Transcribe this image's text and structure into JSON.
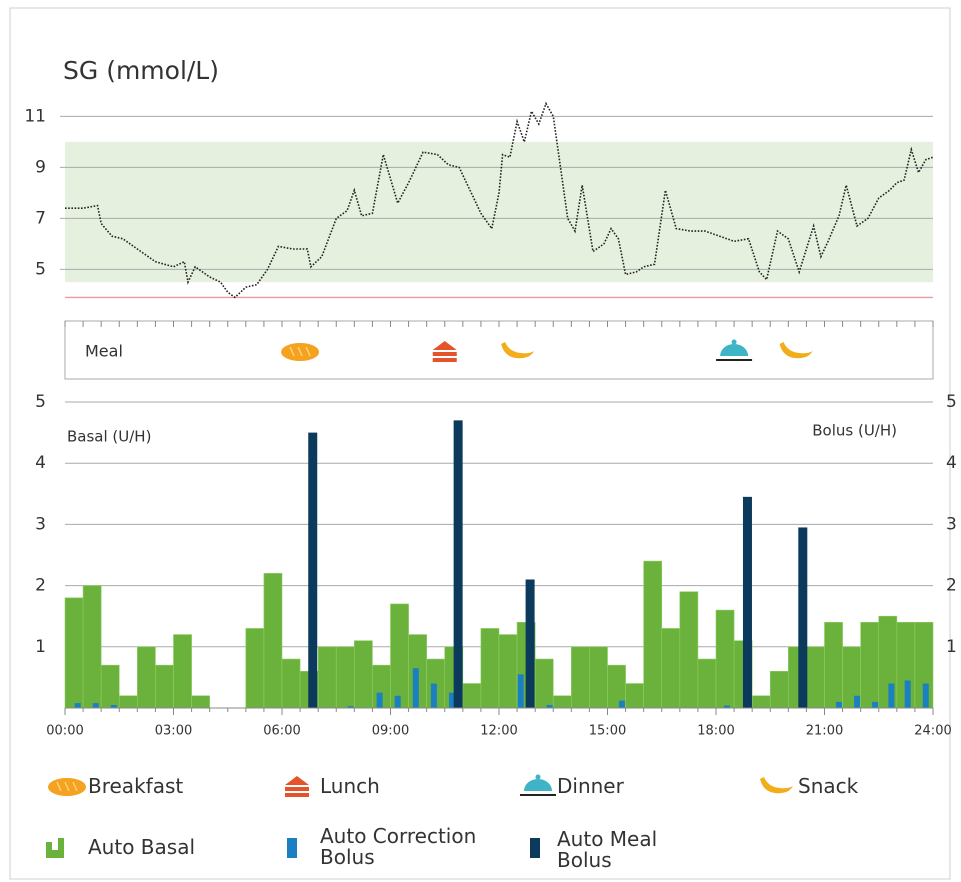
{
  "chart_data": [
    {
      "type": "line",
      "title": "SG (mmol/L)",
      "color": "#222222",
      "xlim": [
        0,
        24
      ],
      "x": [
        0,
        0.5,
        0.9,
        1.0,
        1.3,
        1.6,
        2.0,
        2.5,
        3.0,
        3.3,
        3.4,
        3.6,
        4.0,
        4.3,
        4.5,
        4.7,
        5.0,
        5.3,
        5.6,
        5.9,
        6.3,
        6.7,
        6.8,
        7.1,
        7.5,
        7.8,
        8.0,
        8.2,
        8.5,
        8.8,
        9.2,
        9.5,
        9.9,
        10.3,
        10.6,
        10.9,
        11.1,
        11.3,
        11.5,
        11.8,
        12.0,
        12.1,
        12.3,
        12.5,
        12.7,
        12.9,
        13.1,
        13.3,
        13.5,
        13.7,
        13.9,
        14.1,
        14.3,
        14.6,
        14.9,
        15.1,
        15.3,
        15.5,
        15.8,
        16.0,
        16.3,
        16.6,
        16.9,
        17.3,
        17.7,
        18.1,
        18.5,
        18.9,
        19.2,
        19.4,
        19.7,
        20.0,
        20.3,
        20.7,
        20.9,
        21.1,
        21.4,
        21.6,
        21.9,
        22.2,
        22.5,
        22.8,
        23.0,
        23.2,
        23.4,
        23.6,
        23.8,
        24.0
      ],
      "values": [
        7.4,
        7.4,
        7.5,
        6.8,
        6.3,
        6.2,
        5.8,
        5.3,
        5.1,
        5.3,
        4.5,
        5.1,
        4.7,
        4.5,
        4.1,
        3.9,
        4.3,
        4.4,
        5.0,
        5.9,
        5.8,
        5.8,
        5.1,
        5.5,
        7.0,
        7.3,
        8.1,
        7.1,
        7.2,
        9.5,
        7.6,
        8.4,
        9.6,
        9.5,
        9.1,
        9.0,
        8.4,
        7.8,
        7.2,
        6.6,
        8.0,
        9.5,
        9.4,
        10.8,
        10.0,
        11.2,
        10.7,
        11.5,
        11.0,
        9.0,
        7.0,
        6.5,
        8.3,
        5.7,
        6.0,
        6.6,
        6.2,
        4.8,
        4.9,
        5.1,
        5.2,
        8.1,
        6.6,
        6.5,
        6.5,
        6.3,
        6.1,
        6.2,
        4.9,
        4.6,
        6.5,
        6.2,
        4.9,
        6.7,
        5.5,
        6.1,
        7.1,
        8.3,
        6.7,
        7.0,
        7.8,
        8.1,
        8.4,
        8.5,
        9.7,
        8.8,
        9.3,
        9.4
      ],
      "ylim": [
        3.8,
        11.7
      ],
      "yticks": [
        5,
        7,
        9,
        11
      ],
      "grid": true,
      "target_range": [
        4.5,
        10
      ],
      "target_color": "#e5f1de",
      "low_limit": 3.9,
      "low_color": "#e89aa4"
    },
    {
      "type": "bar",
      "ylabel": "Basal (U/H)",
      "y2label": "Bolus (U/H)",
      "xlim": [
        0,
        24
      ],
      "xticks": [
        {
          "value": 0,
          "label": "00:00"
        },
        {
          "value": 3,
          "label": "03:00"
        },
        {
          "value": 6,
          "label": "06:00"
        },
        {
          "value": 9,
          "label": "09:00"
        },
        {
          "value": 12,
          "label": "12:00"
        },
        {
          "value": 15,
          "label": "15:00"
        },
        {
          "value": 18,
          "label": "18:00"
        },
        {
          "value": 21,
          "label": "21:00"
        },
        {
          "value": 24,
          "label": "24:00"
        }
      ],
      "ylim": [
        0,
        5
      ],
      "yticks": [
        1,
        2,
        3,
        4,
        5
      ],
      "y2lim": [
        0,
        5
      ],
      "y2ticks": [
        1,
        2,
        3,
        4,
        5
      ],
      "grid": true,
      "series": [
        {
          "name": "Auto Basal",
          "color": "#6ab23c",
          "bins": [
            0,
            0.5,
            1,
            1.5,
            2,
            2.5,
            3,
            3.5,
            4,
            4.5,
            5,
            5.5,
            6,
            6.5,
            7,
            7.5,
            8,
            8.5,
            9,
            9.5,
            10,
            10.5,
            11,
            11.5,
            12,
            12.5,
            13,
            13.5,
            14,
            14.5,
            15,
            15.5,
            16,
            16.5,
            17,
            17.5,
            18,
            18.5,
            19,
            19.5,
            20,
            20.5,
            21,
            21.5,
            22,
            22.5,
            23,
            23.5,
            24
          ],
          "values": [
            1.8,
            2.0,
            0.7,
            0.2,
            1.0,
            0.7,
            1.2,
            0.2,
            0,
            0,
            1.3,
            2.2,
            0.8,
            0.6,
            1.0,
            1.0,
            1.1,
            0.7,
            1.7,
            1.2,
            0.8,
            1.0,
            0.4,
            1.3,
            1.2,
            1.4,
            0.8,
            0.2,
            1.0,
            1.0,
            0.7,
            0.4,
            2.4,
            1.3,
            1.9,
            0.8,
            1.6,
            1.1,
            0.2,
            0.6,
            1.0,
            1.0,
            1.4,
            1.0,
            1.4,
            1.5,
            1.4,
            1.4
          ]
        },
        {
          "name": "Auto Correction Bolus",
          "color": "#1b80c2",
          "axis": "y2",
          "x": [
            0.35,
            0.85,
            1.35,
            7.9,
            8.7,
            9.2,
            9.7,
            10.2,
            10.7,
            12.6,
            13.4,
            15.4,
            18.3,
            21.4,
            21.9,
            22.4,
            22.85,
            23.3,
            23.8
          ],
          "values": [
            0.08,
            0.08,
            0.05,
            0.03,
            0.25,
            0.2,
            0.65,
            0.4,
            0.25,
            0.55,
            0.05,
            0.12,
            0.04,
            0.1,
            0.2,
            0.1,
            0.4,
            0.45,
            0.4
          ]
        },
        {
          "name": "Auto Meal Bolus",
          "color": "#0b3a5c",
          "axis": "y2",
          "x": [
            6.85,
            10.87,
            12.86,
            18.87,
            20.4
          ],
          "values": [
            4.5,
            4.7,
            2.1,
            3.45,
            2.95
          ]
        }
      ]
    }
  ],
  "meal": {
    "label": "Meal",
    "legend": [
      {
        "name": "Breakfast",
        "x": [
          6.5
        ]
      },
      {
        "name": "Lunch",
        "x": [
          10.5
        ]
      },
      {
        "name": "Dinner",
        "x": [
          18.5
        ]
      },
      {
        "name": "Snack",
        "x": [
          12.5,
          20.2
        ]
      }
    ]
  }
}
